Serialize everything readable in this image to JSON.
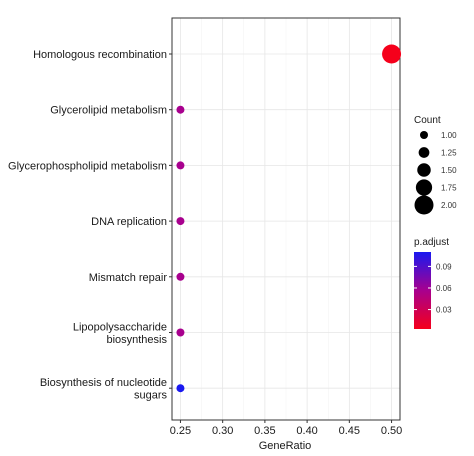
{
  "chart_data": {
    "type": "scatter",
    "xlabel": "GeneRatio",
    "ylabel": "",
    "xlim": [
      0.24,
      0.51
    ],
    "x_ticks": [
      "0.25",
      "0.30",
      "0.35",
      "0.40",
      "0.45",
      "0.50"
    ],
    "x_tick_values": [
      0.25,
      0.3,
      0.35,
      0.4,
      0.45,
      0.5
    ],
    "grid": true,
    "categories": [
      [
        "Homologous recombination"
      ],
      [
        "Glycerolipid metabolism"
      ],
      [
        "Glycerophospholipid metabolism"
      ],
      [
        "DNA replication"
      ],
      [
        "Mismatch repair"
      ],
      [
        "Lipopolysaccharide",
        "biosynthesis"
      ],
      [
        "Biosynthesis of nucleotide",
        "sugars"
      ]
    ],
    "points": [
      {
        "gene_ratio": 0.5,
        "count": 2,
        "p_adjust": 0.003,
        "color": "#f5001b"
      },
      {
        "gene_ratio": 0.25,
        "count": 1,
        "p_adjust": 0.055,
        "color": "#a8008e"
      },
      {
        "gene_ratio": 0.25,
        "count": 1,
        "p_adjust": 0.055,
        "color": "#a8008e"
      },
      {
        "gene_ratio": 0.25,
        "count": 1,
        "p_adjust": 0.055,
        "color": "#a8008e"
      },
      {
        "gene_ratio": 0.25,
        "count": 1,
        "p_adjust": 0.055,
        "color": "#a8008e"
      },
      {
        "gene_ratio": 0.25,
        "count": 1,
        "p_adjust": 0.055,
        "color": "#a8008e"
      },
      {
        "gene_ratio": 0.25,
        "count": 1,
        "p_adjust": 0.11,
        "color": "#1a19f0"
      }
    ],
    "size_legend": {
      "title": "Count",
      "levels": [
        {
          "label": "1.00",
          "value": 1.0
        },
        {
          "label": "1.25",
          "value": 1.25
        },
        {
          "label": "1.50",
          "value": 1.5
        },
        {
          "label": "1.75",
          "value": 1.75
        },
        {
          "label": "2.00",
          "value": 2.0
        }
      ]
    },
    "color_legend": {
      "title": "p.adjust",
      "ticks": [
        {
          "label": "0.09",
          "value": 0.09
        },
        {
          "label": "0.06",
          "value": 0.06
        },
        {
          "label": "0.03",
          "value": 0.03
        }
      ],
      "range": [
        0.003,
        0.11
      ],
      "color_high": "#1a19f0",
      "color_low": "#f5001b"
    },
    "legend_position": "right"
  }
}
